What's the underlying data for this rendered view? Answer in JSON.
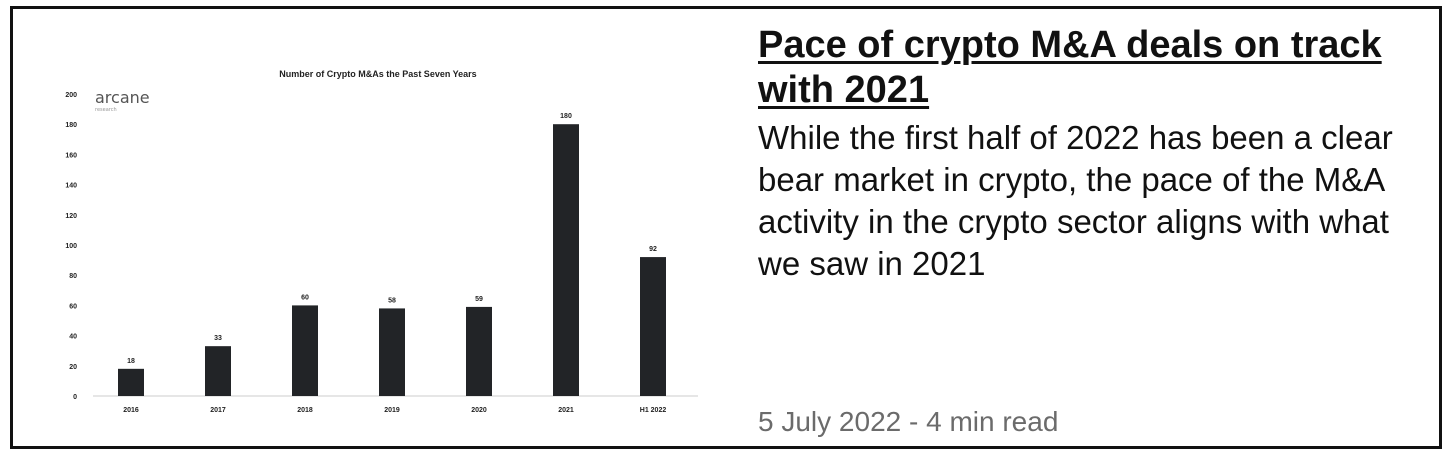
{
  "article": {
    "headline": "Pace of crypto M&A deals on track with 2021",
    "summary": "While the first half of 2022 has been a clear bear market in crypto, the pace of the M&A activity in the crypto sector aligns with what we saw in 2021",
    "meta": "5 July 2022 - 4 min read"
  },
  "logo": {
    "name": "arcane",
    "tagline": "research"
  },
  "colors": {
    "bar": "#222427",
    "border": "#111111",
    "meta_text": "#6b6b6b"
  },
  "chart_data": {
    "type": "bar",
    "title": "Number of Crypto M&As the Past Seven Years",
    "categories": [
      "2016",
      "2017",
      "2018",
      "2019",
      "2020",
      "2021",
      "H1 2022"
    ],
    "values": [
      18,
      33,
      60,
      58,
      59,
      180,
      92
    ],
    "yticks": [
      0,
      20,
      40,
      60,
      80,
      100,
      120,
      140,
      160,
      180,
      200
    ],
    "ylim": [
      0,
      200
    ],
    "xlabel": "",
    "ylabel": "",
    "grid": false,
    "data_labels": true
  }
}
